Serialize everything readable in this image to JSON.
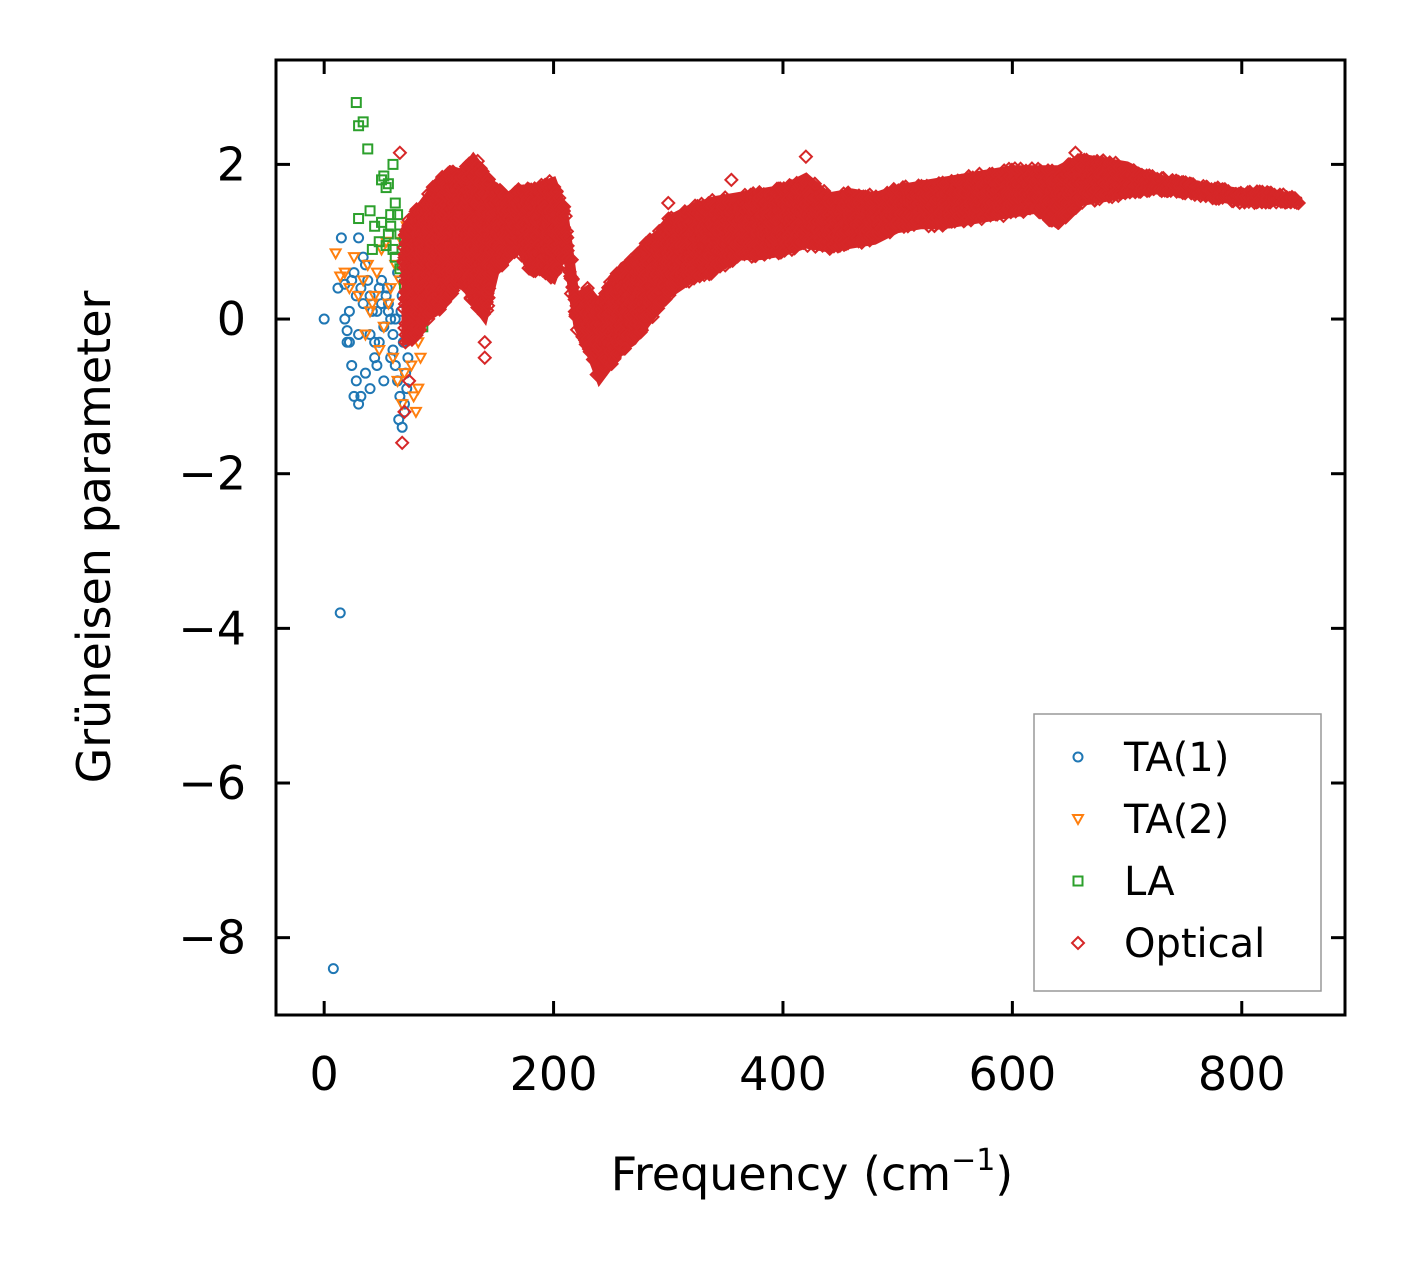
{
  "chart_data": {
    "type": "scatter",
    "xlabel": "Frequency (cm",
    "xlabel_sup": "−1",
    "xlabel_close": ")",
    "ylabel": "Grüneisen parameter",
    "xlim": [
      -42,
      890
    ],
    "ylim": [
      -9.0,
      3.35
    ],
    "xticks": [
      0,
      200,
      400,
      600,
      800
    ],
    "xtick_labels": [
      "0",
      "200",
      "400",
      "600",
      "800"
    ],
    "yticks": [
      2,
      0,
      -2,
      -4,
      -6,
      -8
    ],
    "ytick_labels": [
      "2",
      "0",
      "−2",
      "−4",
      "−6",
      "−8"
    ],
    "legend_position": "lower-right",
    "series": [
      {
        "name": "TA(1)",
        "marker": "circle",
        "color": "#1f77b4",
        "x": [
          0,
          8,
          14,
          12,
          15,
          18,
          20,
          22,
          24,
          26,
          28,
          30,
          32,
          34,
          36,
          38,
          40,
          42,
          44,
          46,
          48,
          50,
          52,
          54,
          56,
          58,
          60,
          62,
          64,
          66,
          68,
          70,
          72,
          28,
          30,
          32,
          36,
          40,
          44,
          48,
          52,
          56,
          60,
          64,
          68,
          30,
          34,
          26,
          24,
          22,
          40,
          46,
          50,
          55,
          58,
          62,
          65,
          70,
          67,
          69,
          71,
          73,
          18,
          20
        ],
        "y": [
          0.0,
          -8.4,
          -3.8,
          0.4,
          1.05,
          0.45,
          -0.3,
          0.1,
          0.5,
          0.6,
          0.3,
          -0.2,
          0.4,
          0.2,
          0.7,
          0.5,
          0.3,
          0.1,
          -0.3,
          -0.6,
          0.4,
          0.2,
          -0.1,
          0.3,
          0.1,
          -0.5,
          -0.2,
          0.0,
          -0.8,
          -1.0,
          -1.4,
          -1.2,
          -0.9,
          -0.8,
          -1.1,
          -1.0,
          -0.7,
          -0.9,
          -0.5,
          -0.3,
          -0.8,
          0.2,
          -0.4,
          0.6,
          0.3,
          1.05,
          0.8,
          -1.0,
          -0.6,
          -0.3,
          -0.2,
          0.1,
          0.5,
          0.4,
          0.0,
          -0.6,
          -1.3,
          -1.1,
          0.1,
          -0.3,
          -0.7,
          -0.5,
          0.0,
          -0.15
        ]
      },
      {
        "name": "TA(2)",
        "marker": "triangle-down",
        "color": "#ff7f0e",
        "x": [
          10,
          14,
          18,
          22,
          26,
          30,
          34,
          38,
          42,
          46,
          50,
          54,
          58,
          62,
          66,
          70,
          74,
          78,
          80,
          82,
          60,
          64,
          68,
          72,
          76,
          56,
          52,
          48,
          44,
          40,
          36,
          78,
          80,
          76,
          72,
          84,
          84,
          82,
          68,
          70
        ],
        "y": [
          0.85,
          0.55,
          0.6,
          0.4,
          0.8,
          0.3,
          0.5,
          0.7,
          0.2,
          0.6,
          0.9,
          1.0,
          0.4,
          0.7,
          0.5,
          0.8,
          0.3,
          0.6,
          0.0,
          -0.3,
          -0.5,
          -0.8,
          -1.1,
          -0.2,
          0.1,
          0.2,
          -0.1,
          -0.4,
          0.3,
          0.1,
          -0.2,
          -1.0,
          -1.2,
          -0.6,
          1.2,
          0.4,
          -0.5,
          -0.9,
          1.0,
          -0.7
        ]
      },
      {
        "name": "LA",
        "marker": "square",
        "color": "#2ca02c",
        "x": [
          28,
          30,
          34,
          38,
          30,
          40,
          42,
          50,
          52,
          54,
          56,
          58,
          60,
          62,
          64,
          66,
          68,
          70,
          72,
          74,
          76,
          78,
          80,
          82,
          84,
          86,
          50,
          54,
          58,
          62,
          66,
          70,
          74,
          78,
          82,
          86,
          44,
          48,
          56,
          60
        ],
        "y": [
          2.8,
          2.5,
          2.55,
          2.2,
          1.3,
          1.4,
          0.9,
          1.8,
          1.85,
          1.7,
          1.75,
          1.35,
          2.0,
          1.5,
          1.35,
          1.1,
          0.7,
          1.0,
          0.6,
          0.5,
          0.3,
          0.8,
          0.2,
          0.85,
          0.4,
          0.1,
          1.25,
          0.95,
          1.2,
          0.8,
          0.65,
          0.45,
          0.35,
          0.9,
          0.6,
          -0.1,
          1.2,
          1.0,
          1.1,
          0.9
        ]
      },
      {
        "name": "Optical",
        "marker": "diamond",
        "color": "#d62728",
        "band": [
          [
            70,
            -0.3,
            1.2
          ],
          [
            80,
            -0.25,
            1.4
          ],
          [
            90,
            0.0,
            1.6
          ],
          [
            100,
            0.1,
            1.8
          ],
          [
            110,
            0.3,
            1.95
          ],
          [
            120,
            0.5,
            1.9
          ],
          [
            130,
            0.2,
            2.1
          ],
          [
            140,
            0.0,
            1.9
          ],
          [
            150,
            0.6,
            1.7
          ],
          [
            160,
            0.8,
            1.6
          ],
          [
            170,
            0.9,
            1.7
          ],
          [
            180,
            0.6,
            1.7
          ],
          [
            190,
            0.6,
            1.75
          ],
          [
            200,
            0.5,
            1.8
          ],
          [
            210,
            0.9,
            1.4
          ],
          [
            220,
            -0.1,
            0.3
          ],
          [
            230,
            -0.4,
            0.4
          ],
          [
            240,
            -0.8,
            0.2
          ],
          [
            250,
            -0.6,
            0.5
          ],
          [
            260,
            -0.4,
            0.7
          ],
          [
            270,
            -0.3,
            0.8
          ],
          [
            280,
            -0.1,
            1.0
          ],
          [
            290,
            0.1,
            1.1
          ],
          [
            300,
            0.3,
            1.3
          ],
          [
            320,
            0.5,
            1.45
          ],
          [
            340,
            0.6,
            1.55
          ],
          [
            360,
            0.8,
            1.6
          ],
          [
            380,
            0.8,
            1.65
          ],
          [
            400,
            0.85,
            1.7
          ],
          [
            420,
            0.95,
            1.85
          ],
          [
            440,
            0.9,
            1.6
          ],
          [
            460,
            0.95,
            1.65
          ],
          [
            480,
            1.0,
            1.6
          ],
          [
            500,
            1.15,
            1.7
          ],
          [
            520,
            1.2,
            1.75
          ],
          [
            540,
            1.2,
            1.8
          ],
          [
            560,
            1.25,
            1.85
          ],
          [
            580,
            1.3,
            1.9
          ],
          [
            600,
            1.35,
            1.95
          ],
          [
            620,
            1.4,
            1.95
          ],
          [
            640,
            1.2,
            1.95
          ],
          [
            660,
            1.5,
            2.1
          ],
          [
            680,
            1.55,
            2.05
          ],
          [
            700,
            1.6,
            2.0
          ],
          [
            720,
            1.65,
            1.85
          ],
          [
            740,
            1.65,
            1.8
          ],
          [
            760,
            1.6,
            1.75
          ],
          [
            780,
            1.55,
            1.7
          ],
          [
            800,
            1.5,
            1.65
          ],
          [
            820,
            1.5,
            1.65
          ],
          [
            840,
            1.5,
            1.6
          ],
          [
            850,
            1.5,
            1.55
          ]
        ],
        "extra_x": [
          66,
          68,
          70,
          72,
          74,
          140,
          140,
          300,
          355,
          420,
          655
        ],
        "extra_y": [
          2.15,
          -1.6,
          -1.2,
          0.9,
          -0.8,
          -0.5,
          -0.3,
          1.5,
          1.8,
          2.1,
          2.15
        ]
      }
    ]
  }
}
